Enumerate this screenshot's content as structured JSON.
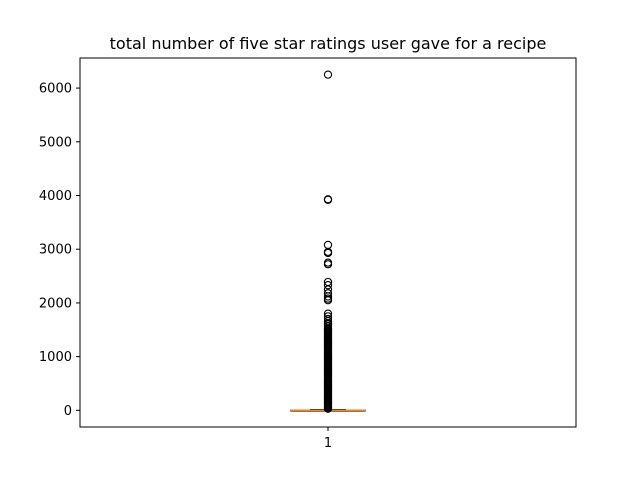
{
  "chart_data": {
    "type": "boxplot",
    "title": "total number of five star ratings user gave for a recipe",
    "xlabel": "",
    "ylabel": "",
    "categories": [
      "1"
    ],
    "ylim": [
      -310,
      6560
    ],
    "yticks": [
      0,
      1000,
      2000,
      3000,
      4000,
      5000,
      6000
    ],
    "grid": false,
    "colors": {
      "box": "#000000",
      "median": "#ff7f0e",
      "outlier": "#000000"
    },
    "box": {
      "whisker_low": 0,
      "q1": 0,
      "median": 1,
      "q3": 6,
      "whisker_high": 15
    },
    "outliers": [
      6250,
      3930,
      3920,
      3080,
      2950,
      2930,
      2750,
      2720,
      2390,
      2330,
      2250,
      2180,
      2120,
      2080,
      2050,
      1800,
      1750,
      1700,
      1660,
      1620,
      1600,
      1560
    ]
  }
}
